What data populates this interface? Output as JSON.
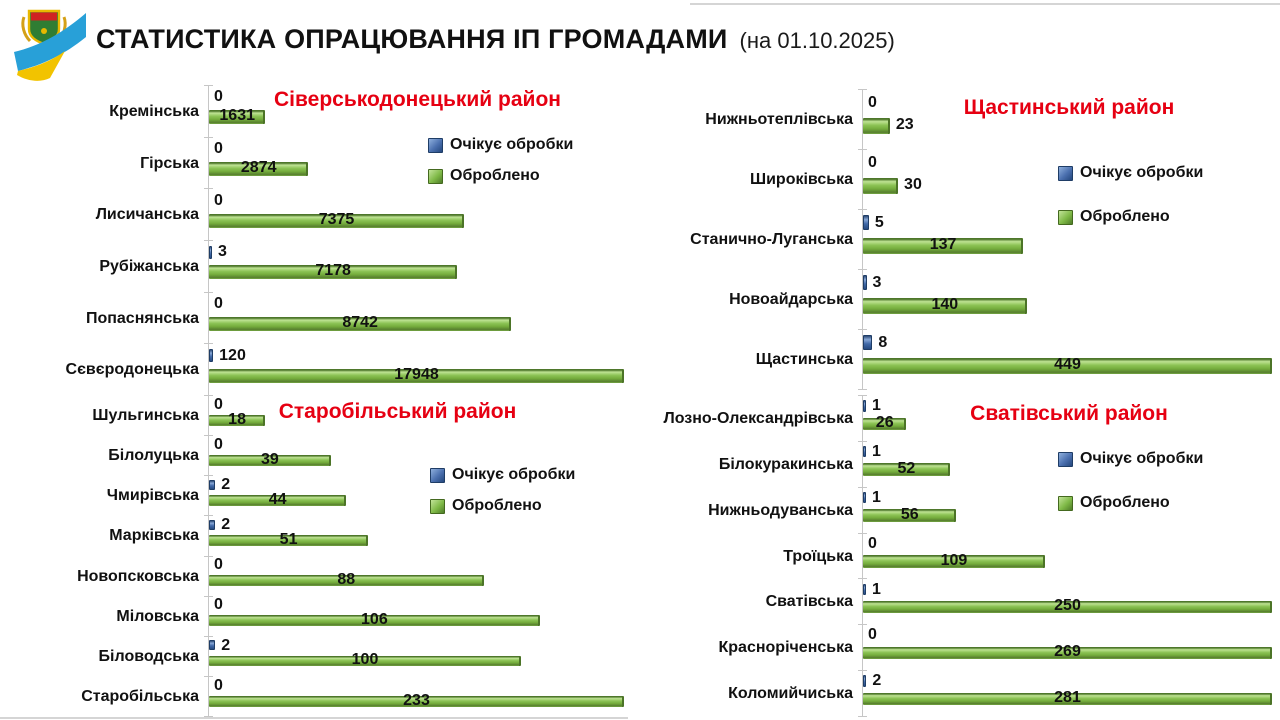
{
  "header": {
    "title": "СТАТИСТИКА ОПРАЦЮВАННЯ ІП ГРОМАДАМИ",
    "subtitle": "(на 01.10.2025)",
    "logo": "luhansk-oblast-emblem-with-ukraine-flag-ribbon"
  },
  "legend_labels": {
    "waiting": "Очікує обробки",
    "processed": "Оброблено"
  },
  "colors": {
    "waiting_blue": "#3a64a8",
    "processed_green": "#79ad47",
    "district_title_red": "#e60012",
    "axis_gray": "#c6c6c6",
    "value_text": "#111111"
  },
  "chart_data": [
    {
      "type": "bar",
      "orientation": "horizontal",
      "title": "Сіверськодонецький район",
      "legend_position": "inside-right",
      "grid": false,
      "axis_max": 12000,
      "categories": [
        "Кремінська",
        "Гірська",
        "Лисичанська",
        "Рубіжанська",
        "Попаснянська",
        "Сєвєродонецька"
      ],
      "series": [
        {
          "name": "Очікує обробки",
          "color": "#3a64a8",
          "values": [
            0,
            0,
            0,
            3,
            0,
            120
          ]
        },
        {
          "name": "Оброблено",
          "color": "#79ad47",
          "values": [
            1631,
            2874,
            7375,
            7178,
            8742,
            17948
          ]
        }
      ]
    },
    {
      "type": "bar",
      "orientation": "horizontal",
      "title": "Щастинський район",
      "legend_position": "inside-right",
      "grid": false,
      "axis_max": 350,
      "categories": [
        "Нижньотеплівська",
        "Широківська",
        "Станично-Луганська",
        "Новоайдарська",
        "Щастинська"
      ],
      "series": [
        {
          "name": "Очікує обробки",
          "color": "#3a64a8",
          "values": [
            0,
            0,
            5,
            3,
            8
          ]
        },
        {
          "name": "Оброблено",
          "color": "#79ad47",
          "values": [
            23,
            30,
            137,
            140,
            449
          ]
        }
      ]
    },
    {
      "type": "bar",
      "orientation": "horizontal",
      "title": "Старобільський район",
      "legend_position": "inside-right",
      "grid": false,
      "axis_max": 133,
      "categories": [
        "Шульгинська",
        "Білолуцька",
        "Чмирівська",
        "Марківська",
        "Новопсковська",
        "Міловська",
        "Біловодська",
        "Старобільська"
      ],
      "series": [
        {
          "name": "Очікує обробки",
          "color": "#3a64a8",
          "values": [
            0,
            0,
            2,
            2,
            0,
            0,
            2,
            0
          ]
        },
        {
          "name": "Оброблено",
          "color": "#79ad47",
          "values": [
            18,
            39,
            44,
            51,
            88,
            106,
            100,
            233
          ]
        }
      ]
    },
    {
      "type": "bar",
      "orientation": "horizontal",
      "title": "Сватівський район",
      "legend_position": "inside-right",
      "grid": false,
      "axis_max": 245,
      "categories": [
        "Лозно-Олександрівська",
        "Білокуракинська",
        "Нижньодуванська",
        "Троїцька",
        "Сватівська",
        "Красноріченська",
        "Коломийчиська"
      ],
      "series": [
        {
          "name": "Очікує обробки",
          "color": "#3a64a8",
          "values": [
            1,
            1,
            1,
            0,
            1,
            0,
            2
          ]
        },
        {
          "name": "Оброблено",
          "color": "#79ad47",
          "values": [
            26,
            52,
            56,
            109,
            250,
            269,
            281
          ]
        }
      ]
    }
  ]
}
